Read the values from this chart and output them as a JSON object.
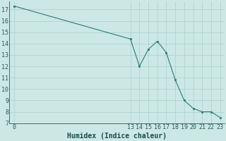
{
  "x": [
    0,
    13,
    14,
    15,
    16,
    17,
    18,
    19,
    20,
    21,
    22,
    23
  ],
  "y": [
    17.3,
    14.4,
    12.0,
    13.5,
    14.2,
    13.2,
    10.8,
    9.0,
    8.3,
    8.0,
    8.0,
    7.5
  ],
  "line_color": "#2d7a72",
  "marker_color": "#2d7a72",
  "bg_color": "#cce8e4",
  "grid_color": "#aacfcb",
  "xlabel": "Humidex (Indice chaleur)",
  "yticks": [
    7,
    8,
    9,
    10,
    11,
    12,
    13,
    14,
    15,
    16,
    17
  ],
  "xtick_positions": [
    0,
    13,
    14,
    15,
    16,
    17,
    18,
    19,
    20,
    21,
    22,
    23
  ],
  "xtick_labels": [
    "0",
    "13",
    "14",
    "15",
    "16",
    "17",
    "18",
    "19",
    "20",
    "21",
    "22",
    "23"
  ],
  "ylim": [
    7,
    17.7
  ],
  "xlim": [
    -0.5,
    23.5
  ],
  "xlabel_fontsize": 7,
  "tick_fontsize": 6
}
